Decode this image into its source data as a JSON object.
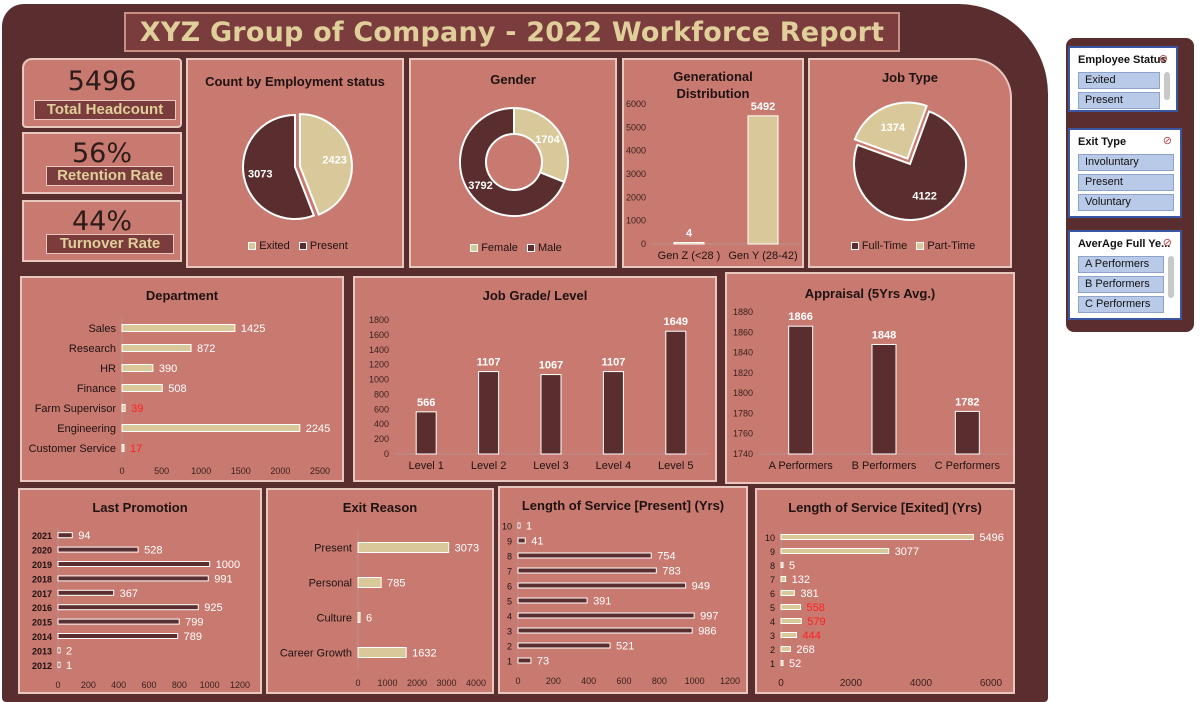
{
  "report_title": "XYZ Group of Company - 2022 Workforce Report",
  "kpis": [
    {
      "value": "5496",
      "label": "Total Headcount"
    },
    {
      "value": "56%",
      "label": "Retention Rate"
    },
    {
      "value": "44%",
      "label": "Turnover Rate"
    }
  ],
  "colors": {
    "dark": "#5a2e2f",
    "light": "#d9c99a",
    "panel": "#c97a70",
    "highlight": "#ff2020",
    "frame": "#7a3c3c"
  },
  "slicers": [
    {
      "title": "Employee Status",
      "items": [
        "Exited",
        "Present"
      ]
    },
    {
      "title": "Exit Type",
      "items": [
        "Involuntary",
        "Present",
        "Voluntary"
      ]
    },
    {
      "title": "AverAge Full Ye...",
      "items": [
        "A Performers",
        "B Performers",
        "C Performers"
      ]
    }
  ],
  "chart_data": [
    {
      "id": "employment",
      "type": "pie",
      "title": "Count by Employment status",
      "categories": [
        "Exited",
        "Present"
      ],
      "values": [
        2423,
        3073
      ],
      "colors": [
        "#d9c99a",
        "#5a2e2f"
      ],
      "legend": "bottom"
    },
    {
      "id": "gender",
      "type": "pie",
      "title": "Gender",
      "donut": true,
      "categories": [
        "Female",
        "Male"
      ],
      "values": [
        1704,
        3792
      ],
      "colors": [
        "#d9c99a",
        "#5a2e2f"
      ],
      "legend": "bottom"
    },
    {
      "id": "generation",
      "type": "bar",
      "title": "Generational Distribution",
      "categories": [
        "Gen Z (<28 )",
        "Gen Y (28-42)"
      ],
      "values": [
        4,
        5492
      ],
      "ylim": [
        0,
        6000
      ],
      "yticks": [
        0,
        1000,
        2000,
        3000,
        4000,
        5000,
        6000
      ],
      "color": "#d9c99a"
    },
    {
      "id": "jobtype",
      "type": "pie",
      "title": "Job Type",
      "categories": [
        "Full-Time",
        "Part-Time"
      ],
      "values": [
        4122,
        1374
      ],
      "colors": [
        "#5a2e2f",
        "#d9c99a"
      ],
      "legend": "bottom"
    },
    {
      "id": "department",
      "type": "bar",
      "orientation": "horizontal",
      "title": "Department",
      "categories": [
        "Sales",
        "Research",
        "HR",
        "Finance",
        "Farm Supervisor",
        "Engineering",
        "Customer Service"
      ],
      "values": [
        1425,
        872,
        390,
        508,
        39,
        2245,
        17
      ],
      "xlim": [
        0,
        2500
      ],
      "xticks": [
        0,
        500,
        1000,
        1500,
        2000,
        2500
      ],
      "color": "#d9c99a",
      "low_threshold": 50
    },
    {
      "id": "jobgrade",
      "type": "bar",
      "title": "Job Grade/ Level",
      "categories": [
        "Level 1",
        "Level 2",
        "Level 3",
        "Level 4",
        "Level 5"
      ],
      "values": [
        566,
        1107,
        1067,
        1107,
        1649
      ],
      "ylim": [
        0,
        1800
      ],
      "yticks": [
        0,
        200,
        400,
        600,
        800,
        1000,
        1200,
        1400,
        1600,
        1800
      ],
      "color": "#5a2e2f"
    },
    {
      "id": "appraisal",
      "type": "bar",
      "title": "Appraisal (5Yrs Avg.)",
      "categories": [
        "A Performers",
        "B Performers",
        "C Performers"
      ],
      "values": [
        1866,
        1848,
        1782
      ],
      "ylim": [
        1740,
        1880
      ],
      "yticks": [
        1740,
        1760,
        1780,
        1800,
        1820,
        1840,
        1860,
        1880
      ],
      "color": "#5a2e2f"
    },
    {
      "id": "promotion",
      "type": "bar",
      "orientation": "horizontal",
      "title": "Last Promotion",
      "categories": [
        "2021",
        "2020",
        "2019",
        "2018",
        "2017",
        "2016",
        "2015",
        "2014",
        "2013",
        "2012"
      ],
      "values": [
        94,
        528,
        1000,
        991,
        367,
        925,
        799,
        789,
        2,
        1
      ],
      "xlim": [
        0,
        1200
      ],
      "xticks": [
        0,
        200,
        400,
        600,
        800,
        1000,
        1200
      ],
      "color": "#5a2e2f"
    },
    {
      "id": "exitreason",
      "type": "bar",
      "orientation": "horizontal",
      "title": "Exit Reason",
      "categories": [
        "Present",
        "Personal",
        "Culture",
        "Career Growth"
      ],
      "values": [
        3073,
        785,
        6,
        1632
      ],
      "xlim": [
        0,
        4000
      ],
      "xticks": [
        0,
        1000,
        2000,
        3000,
        4000
      ],
      "color": "#d9c99a"
    },
    {
      "id": "los_present",
      "type": "bar",
      "orientation": "horizontal",
      "title": "Length of Service [Present] (Yrs)",
      "categories": [
        "10",
        "9",
        "8",
        "7",
        "6",
        "5",
        "4",
        "3",
        "2",
        "1"
      ],
      "values": [
        1,
        41,
        754,
        783,
        949,
        391,
        997,
        986,
        521,
        73
      ],
      "xlim": [
        0,
        1200
      ],
      "xticks": [
        0,
        200,
        400,
        600,
        800,
        1000,
        1200
      ],
      "color": "#5a2e2f"
    },
    {
      "id": "los_exited",
      "type": "bar",
      "orientation": "horizontal",
      "title": "Length of Service [Exited] (Yrs)",
      "categories": [
        "10",
        "9",
        "8",
        "7",
        "6",
        "5",
        "4",
        "3",
        "2",
        "1"
      ],
      "values": [
        5496,
        3077,
        5,
        132,
        381,
        558,
        579,
        444,
        268,
        52
      ],
      "xlim": [
        0,
        6000
      ],
      "xticks": [
        0,
        2000,
        4000,
        6000
      ],
      "color": "#d9c99a",
      "highlight_categories": [
        "5",
        "4",
        "3"
      ]
    }
  ]
}
